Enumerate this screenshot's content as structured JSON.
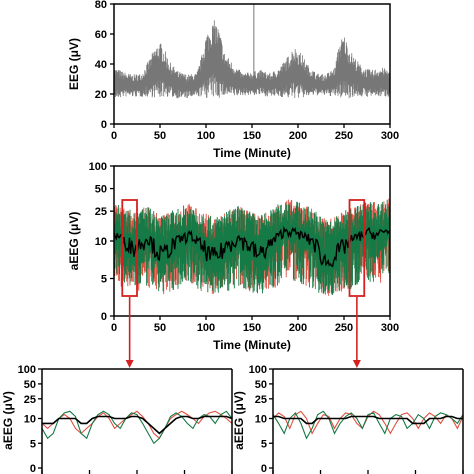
{
  "chart_data": [
    {
      "id": "eeg",
      "type": "line",
      "xlabel": "Time (Minute)",
      "ylabel": "EEG (μV)",
      "xlim": [
        0,
        300
      ],
      "ylim": [
        0,
        80
      ],
      "xticks": [
        "0",
        "50",
        "100",
        "150",
        "200",
        "250",
        "300"
      ],
      "yticks": [
        "0",
        "20",
        "40",
        "60",
        "80"
      ],
      "series": [
        {
          "color": "#777777",
          "note_free_description": "dense noisy trace, baseline ~25, bursts to ~50-70",
          "envelope": {
            "x": [
              0,
              10,
              20,
              30,
              40,
              45,
              50,
              55,
              60,
              70,
              80,
              90,
              95,
              100,
              105,
              110,
              115,
              120,
              130,
              140,
              150,
              160,
              170,
              180,
              190,
              195,
              200,
              205,
              210,
              220,
              230,
              240,
              245,
              250,
              255,
              260,
              270,
              280,
              290,
              300
            ],
            "high": [
              38,
              35,
              33,
              34,
              45,
              52,
              55,
              50,
              42,
              35,
              33,
              34,
              45,
              60,
              66,
              70,
              62,
              48,
              40,
              34,
              35,
              36,
              34,
              38,
              46,
              52,
              50,
              46,
              40,
              34,
              33,
              38,
              55,
              60,
              52,
              46,
              38,
              36,
              38,
              36
            ],
            "low": [
              16,
              18,
              18,
              18,
              18,
              17,
              17,
              18,
              18,
              17,
              17,
              18,
              18,
              17,
              17,
              17,
              17,
              18,
              18,
              19,
              19,
              19,
              18,
              18,
              17,
              17,
              17,
              17,
              18,
              19,
              19,
              18,
              17,
              17,
              17,
              18,
              18,
              18,
              18,
              18
            ]
          },
          "spike": {
            "x": 152,
            "y": 80
          }
        }
      ]
    },
    {
      "id": "aeeg",
      "type": "line",
      "xlabel": "Time (Minute)",
      "ylabel": "aEEG (μV)",
      "xlim": [
        0,
        300
      ],
      "yscale": "log-linear",
      "xticks": [
        "0",
        "50",
        "100",
        "150",
        "200",
        "250",
        "300"
      ],
      "yticks": [
        "0",
        "5",
        "10",
        "25",
        "50",
        "100"
      ],
      "series": [
        {
          "color": "#e05040",
          "values_range": [
            3,
            30
          ]
        },
        {
          "color": "#157a45",
          "values_range": [
            3,
            30
          ]
        },
        {
          "color": "#000000",
          "values": [
            12,
            11,
            10,
            9,
            10,
            11,
            9,
            8,
            9,
            10,
            11,
            12,
            10,
            9,
            8,
            8,
            9,
            10,
            11,
            10,
            9,
            8,
            9,
            10,
            12,
            14,
            13,
            12,
            11,
            10,
            8,
            7,
            8,
            9,
            10,
            11,
            12,
            13,
            12,
            13,
            14
          ]
        }
      ],
      "highlight_boxes": [
        {
          "x": [
            9,
            25
          ]
        },
        {
          "x": [
            256,
            272
          ]
        }
      ]
    },
    {
      "id": "zoom-left",
      "type": "line",
      "ylabel": "aEEG (μV)",
      "yticks": [
        "0",
        "5",
        "10",
        "25",
        "50",
        "100"
      ],
      "series": [
        {
          "color": "#e05040",
          "values": [
            9,
            8,
            9,
            10,
            12,
            10,
            8,
            7,
            8,
            9,
            11,
            13,
            10,
            8,
            9,
            10,
            12,
            14,
            11,
            9,
            7,
            6,
            8,
            10,
            12,
            14,
            12,
            10,
            9,
            11,
            13,
            14,
            12,
            10,
            9
          ]
        },
        {
          "color": "#157a45",
          "values": [
            8,
            6,
            7,
            10,
            13,
            14,
            11,
            7,
            6,
            9,
            12,
            14,
            12,
            9,
            8,
            10,
            13,
            12,
            9,
            7,
            5,
            6,
            8,
            11,
            13,
            11,
            9,
            8,
            10,
            12,
            11,
            9,
            12,
            14,
            10
          ]
        },
        {
          "color": "#000000",
          "values": [
            9,
            9,
            9,
            10,
            10,
            10,
            10,
            9,
            9,
            10,
            11,
            11,
            11,
            10,
            10,
            10,
            11,
            11,
            10,
            9,
            8,
            7,
            8,
            9,
            10,
            11,
            11,
            10,
            10,
            11,
            11,
            11,
            11,
            11,
            10
          ]
        }
      ]
    },
    {
      "id": "zoom-right",
      "type": "line",
      "ylabel": "aEEG (μV)",
      "yticks": [
        "0",
        "5",
        "10",
        "25",
        "50",
        "100"
      ],
      "series": [
        {
          "color": "#e05040",
          "values": [
            10,
            13,
            11,
            8,
            12,
            14,
            10,
            7,
            9,
            12,
            11,
            8,
            10,
            13,
            12,
            9,
            8,
            11,
            14,
            12,
            9,
            7,
            9,
            12,
            13,
            10,
            8,
            10,
            13,
            11,
            9,
            12,
            10,
            8,
            11
          ]
        },
        {
          "color": "#157a45",
          "values": [
            12,
            9,
            7,
            10,
            13,
            9,
            6,
            8,
            12,
            14,
            10,
            7,
            9,
            11,
            13,
            10,
            8,
            12,
            13,
            9,
            7,
            10,
            12,
            11,
            8,
            9,
            12,
            10,
            8,
            11,
            13,
            12,
            10,
            9,
            12
          ]
        },
        {
          "color": "#000000",
          "values": [
            11,
            11,
            10,
            10,
            10,
            10,
            9,
            9,
            10,
            10,
            10,
            10,
            10,
            10,
            11,
            11,
            11,
            11,
            11,
            10,
            10,
            10,
            10,
            10,
            10,
            9,
            9,
            9,
            10,
            10,
            10,
            11,
            11,
            10,
            10
          ]
        }
      ]
    }
  ]
}
